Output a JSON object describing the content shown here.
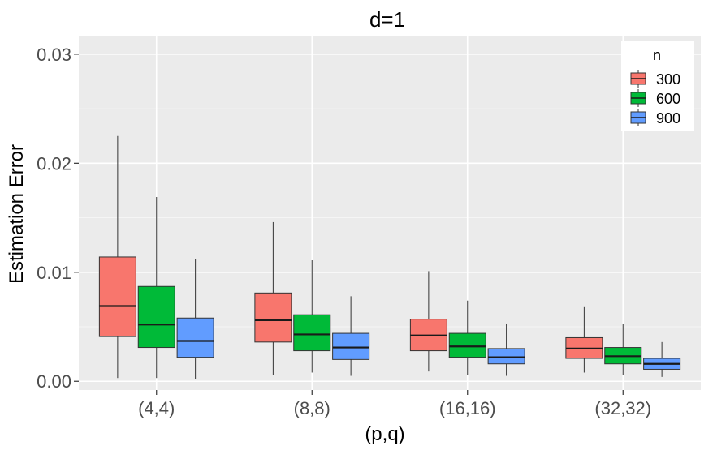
{
  "chart_data": {
    "type": "boxplot",
    "title": "d=1",
    "xlabel": "(p,q)",
    "ylabel": "Estimation Error",
    "categories": [
      "(4,4)",
      "(8,8)",
      "(16,16)",
      "(32,32)"
    ],
    "y_ticks": [
      0.0,
      0.01,
      0.02,
      0.03
    ],
    "y_tick_labels": [
      "0.00",
      "0.01",
      "0.02",
      "0.03"
    ],
    "ylim": [
      -0.0008,
      0.0317
    ],
    "grid": true,
    "legend": {
      "title": "n",
      "position": "top-right"
    },
    "series": [
      {
        "name": "300",
        "color": "#F8766D",
        "boxes": [
          {
            "min": 0.0003,
            "q1": 0.0041,
            "median": 0.0069,
            "q3": 0.0114,
            "max": 0.0225
          },
          {
            "min": 0.0006,
            "q1": 0.0036,
            "median": 0.0056,
            "q3": 0.0081,
            "max": 0.0146
          },
          {
            "min": 0.0009,
            "q1": 0.0028,
            "median": 0.0042,
            "q3": 0.0057,
            "max": 0.0101
          },
          {
            "min": 0.0008,
            "q1": 0.0021,
            "median": 0.003,
            "q3": 0.004,
            "max": 0.0068
          }
        ]
      },
      {
        "name": "600",
        "color": "#00BA38",
        "boxes": [
          {
            "min": 0.0003,
            "q1": 0.0031,
            "median": 0.0052,
            "q3": 0.0087,
            "max": 0.0169
          },
          {
            "min": 0.0008,
            "q1": 0.0028,
            "median": 0.0043,
            "q3": 0.0061,
            "max": 0.0111
          },
          {
            "min": 0.0006,
            "q1": 0.0022,
            "median": 0.0032,
            "q3": 0.0044,
            "max": 0.0074
          },
          {
            "min": 0.0006,
            "q1": 0.0016,
            "median": 0.0023,
            "q3": 0.0031,
            "max": 0.0053
          }
        ]
      },
      {
        "name": "900",
        "color": "#619CFF",
        "boxes": [
          {
            "min": 0.0002,
            "q1": 0.0022,
            "median": 0.0037,
            "q3": 0.0058,
            "max": 0.0112
          },
          {
            "min": 0.0005,
            "q1": 0.002,
            "median": 0.0031,
            "q3": 0.0044,
            "max": 0.0078
          },
          {
            "min": 0.0005,
            "q1": 0.0016,
            "median": 0.0022,
            "q3": 0.003,
            "max": 0.0053
          },
          {
            "min": 0.0004,
            "q1": 0.0011,
            "median": 0.0016,
            "q3": 0.0021,
            "max": 0.0036
          }
        ]
      }
    ]
  },
  "colors": {
    "panel_background": "#EBEBEB",
    "grid_major": "#FFFFFF",
    "grid_minor": "#F5F5F5",
    "box_outline": "#333333",
    "median_line": "#1A1A1A",
    "tick_text": "#4D4D4D"
  }
}
